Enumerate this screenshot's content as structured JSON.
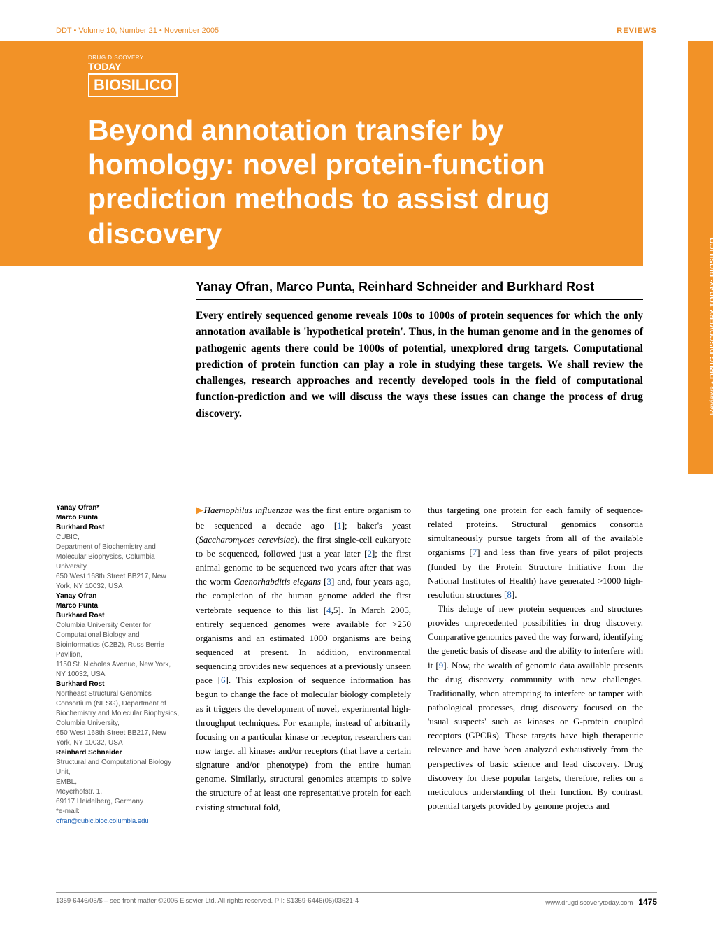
{
  "header": {
    "left": "DDT • Volume 10, Number 21 • November 2005",
    "right": "REVIEWS"
  },
  "logo": {
    "small": "DRUG DISCOVERY",
    "today": "TODAY",
    "main": "BIOSILICO"
  },
  "title": "Beyond annotation transfer by homology: novel protein-function prediction methods to assist drug discovery",
  "sidetab": {
    "light": "Reviews • ",
    "bold": "DRUG DISCOVERY TODAY: BIOSILICO"
  },
  "authors": "Yanay Ofran, Marco Punta, Reinhard Schneider and Burkhard Rost",
  "abstract": "Every entirely sequenced genome reveals 100s to 1000s of protein sequences for which the only annotation available is 'hypothetical protein'. Thus, in the human genome and in the genomes of pathogenic agents there could be 1000s of potential, unexplored drug targets. Computational prediction of protein function can play a role in studying these targets. We shall review the challenges, research approaches and recently developed tools in the field of computational function-prediction and we will discuss the ways these issues can change the process of drug discovery.",
  "affiliations": {
    "block1_names": "Yanay Ofran*\nMarco Punta\nBurkhard Rost",
    "block1_addr": "CUBIC,\nDepartment of Biochemistry and Molecular Biophysics, Columbia University,\n650 West 168th Street BB217, New York, NY 10032, USA",
    "block2_names": "Yanay Ofran\nMarco Punta\nBurkhard Rost",
    "block2_addr": "Columbia University Center for Computational Biology and Bioinformatics (C2B2), Russ Berrie Pavilion,\n1150 St. Nicholas Avenue, New York, NY 10032, USA",
    "block3_names": "Burkhard Rost",
    "block3_addr": "Northeast Structural Genomics Consortium (NESG), Department of Biochemistry and Molecular Biophysics, Columbia University,\n650 West 168th Street BB217, New York, NY 10032, USA",
    "block4_names": "Reinhard Schneider",
    "block4_addr": "Structural and Computational Biology Unit,\nEMBL,\nMeyerhofstr. 1,\n69117 Heidelberg, Germany",
    "email_label": "*e-mail:",
    "email": "ofran@cubic.bioc.columbia.edu"
  },
  "body": {
    "col1_p1_pre": "Haemophilus influenzae",
    "col1_p1_a": " was the first entire organism to be sequenced a decade ago [",
    "col1_ref1": "1",
    "col1_p1_b": "]; baker's yeast (",
    "col1_ital2": "Saccharomyces cerevisiae",
    "col1_p1_c": "), the first single-cell eukaryote to be sequenced, followed just a year later [",
    "col1_ref2": "2",
    "col1_p1_d": "]; the first animal genome to be sequenced two years after that was the worm ",
    "col1_ital3": "Caenorhabditis elegans",
    "col1_p1_e": " [",
    "col1_ref3": "3",
    "col1_p1_f": "] and, four years ago, the completion of the human genome added the first vertebrate sequence to this list [",
    "col1_ref4": "4",
    "col1_p1_g": ",5]. In March 2005, entirely sequenced genomes were available for >250 organisms and an estimated 1000 organisms are being sequenced at present. In addition, environmental sequencing provides new sequences at a previously unseen pace [",
    "col1_ref6": "6",
    "col1_p1_h": "]. This explosion of sequence information has begun to change the face of molecular biology completely as it triggers the development of novel, experimental high-throughput techniques. For example, instead of arbitrarily focusing on a particular kinase or receptor, researchers can now target all kinases and/or receptors (that have a certain signature and/or phenotype) from the entire human genome. Similarly, structural genomics attempts to solve the structure of at least one representative protein for each existing structural fold,",
    "col2_p1_a": "thus targeting one protein for each family of sequence-related proteins. Structural genomics consortia simultaneously pursue targets from all of the available organisms [",
    "col2_ref7": "7",
    "col2_p1_b": "] and less than five years of pilot projects (funded by the Protein Structure Initiative from the National Institutes of Health) have generated >1000 high-resolution structures [",
    "col2_ref8": "8",
    "col2_p1_c": "].",
    "col2_p2_a": "This deluge of new protein sequences and structures provides unprecedented possibilities in drug discovery. Comparative genomics paved the way forward, identifying the genetic basis of disease and the ability to interfere with it [",
    "col2_ref9": "9",
    "col2_p2_b": "]. Now, the wealth of genomic data available presents the drug discovery community with new challenges. Traditionally, when attempting to interfere or tamper with pathological processes, drug discovery focused on the 'usual suspects' such as kinases or G-protein coupled receptors (GPCRs). These targets have high therapeutic relevance and have been analyzed exhaustively from the perspectives of basic science and lead discovery. Drug discovery for these popular targets, therefore, relies on a meticulous understanding of their function. By contrast, potential targets provided by genome projects and"
  },
  "footer": {
    "left": "1359-6446/05/$ – see front matter  ©2005 Elsevier Ltd. All rights reserved. PII: S1359-6446(05)03621-4",
    "right_url": "www.drugdiscoverytoday.com",
    "pagenum": "1475"
  },
  "colors": {
    "orange": "#f29227",
    "link": "#1a5fb4"
  }
}
